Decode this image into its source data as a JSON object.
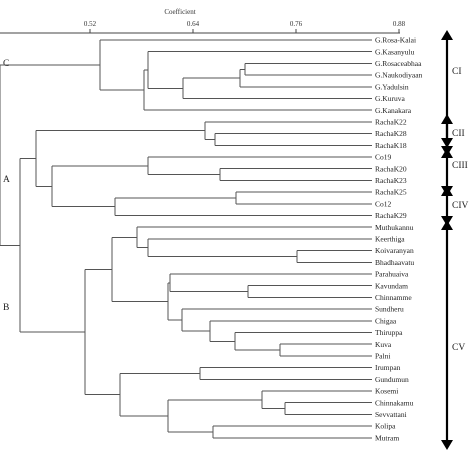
{
  "axis": {
    "title": "Coefficient",
    "ticks": [
      "0.52",
      "0.64",
      "0.76",
      "0.88"
    ]
  },
  "side_labels": [
    "C",
    "A",
    "B"
  ],
  "leaves": [
    "G.Rosa-Kalai",
    "G.Kasanyulu",
    "G.Rosaceabhaa",
    "G.Naukodiyaan",
    "G.Yadulsin",
    "G.Kuruva",
    "G.Kanakara",
    "RachaK22",
    "RachaK28",
    "RachaK18",
    "Co19",
    "RachaK20",
    "RachaK23",
    "RachaK25",
    "Co12",
    "RachaK29",
    "Muthukannu",
    "Keerthiga",
    "Koivaranyan",
    "Bhadhaavatu",
    "Parahuaiva",
    "Kavundam",
    "Chinnamme",
    "Sundheru",
    "Chigaa",
    "Thiruppa",
    "Kuva",
    "Palni",
    "Irumpan",
    "Gundumun",
    "Kosemi",
    "Chinnakamu",
    "Sevvattani",
    "Kolipa",
    "Mutram"
  ],
  "clusters": [
    "CI",
    "CII",
    "CIII",
    "CIV",
    "CV"
  ]
}
